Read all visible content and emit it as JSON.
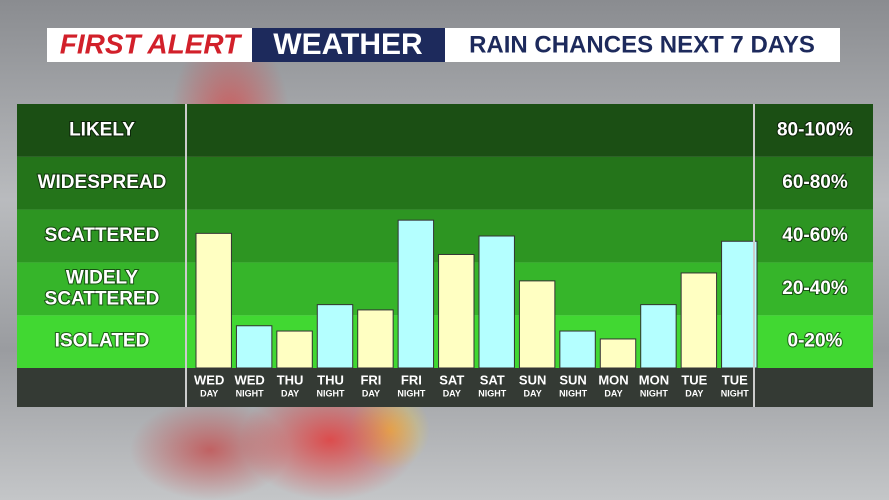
{
  "chart_data": {
    "type": "bar",
    "header": [
      "FIRST ALERT",
      "WEATHER"
    ],
    "title": "RAIN CHANCES NEXT 7 DAYS",
    "categories": [
      {
        "day": "WED",
        "period": "DAY"
      },
      {
        "day": "WED",
        "period": "NIGHT"
      },
      {
        "day": "THU",
        "period": "DAY"
      },
      {
        "day": "THU",
        "period": "NIGHT"
      },
      {
        "day": "FRI",
        "period": "DAY"
      },
      {
        "day": "FRI",
        "period": "NIGHT"
      },
      {
        "day": "SAT",
        "period": "DAY"
      },
      {
        "day": "SAT",
        "period": "NIGHT"
      },
      {
        "day": "SUN",
        "period": "DAY"
      },
      {
        "day": "SUN",
        "period": "NIGHT"
      },
      {
        "day": "MON",
        "period": "DAY"
      },
      {
        "day": "MON",
        "period": "NIGHT"
      },
      {
        "day": "TUE",
        "period": "DAY"
      },
      {
        "day": "TUE",
        "period": "NIGHT"
      }
    ],
    "values": [
      51,
      16,
      14,
      24,
      22,
      56,
      43,
      50,
      33,
      14,
      11,
      24,
      36,
      48
    ],
    "colors": [
      "#ffffc2",
      "#b4ffff",
      "#ffffc2",
      "#b4ffff",
      "#ffffc2",
      "#b4ffff",
      "#ffffc2",
      "#b4ffff",
      "#ffffc2",
      "#b4ffff",
      "#ffffc2",
      "#b4ffff",
      "#ffffc2",
      "#b4ffff"
    ],
    "ylim": [
      0,
      100
    ],
    "bands": [
      {
        "label": [
          "LIKELY"
        ],
        "range": "80-100%",
        "from": 80,
        "to": 100,
        "color": "#1b4f14"
      },
      {
        "label": [
          "WIDESPREAD"
        ],
        "range": "60-80%",
        "from": 60,
        "to": 80,
        "color": "#24741a"
      },
      {
        "label": [
          "SCATTERED"
        ],
        "range": "40-60%",
        "from": 40,
        "to": 60,
        "color": "#2d9522"
      },
      {
        "label": [
          "WIDELY",
          "SCATTERED"
        ],
        "range": "20-40%",
        "from": 20,
        "to": 40,
        "color": "#36b52a"
      },
      {
        "label": [
          "ISOLATED"
        ],
        "range": "0-20%",
        "from": 0,
        "to": 20,
        "color": "#41d832"
      }
    ]
  }
}
